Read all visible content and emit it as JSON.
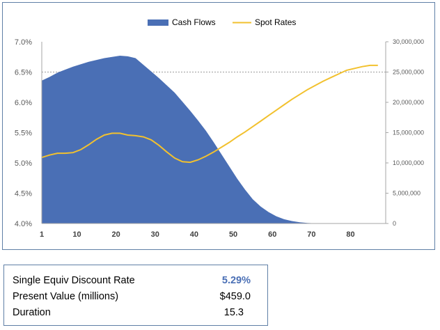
{
  "colors": {
    "cash_flows": "#4a6fb5",
    "spot_rates": "#f2c12e",
    "accent": "#4a6fb5"
  },
  "chart_data": {
    "type": "area",
    "legend": {
      "placement": "top-center",
      "entries": [
        "Cash Flows",
        "Spot Rates"
      ]
    },
    "x_ticks": [
      "1",
      "10",
      "20",
      "30",
      "40",
      "50",
      "60",
      "70",
      "80"
    ],
    "xlim": [
      1,
      89
    ],
    "left_axis": {
      "ylim": [
        0.04,
        0.07
      ],
      "ticks": [
        "4.0%",
        "4.5%",
        "5.0%",
        "5.5%",
        "6.0%",
        "6.5%",
        "7.0%"
      ]
    },
    "right_axis": {
      "ylim": [
        0,
        30000000
      ],
      "ticks": [
        "0",
        "5,000,000",
        "10,000,000",
        "15,000,000",
        "20,000,000",
        "25,000,000",
        "30,000,000"
      ]
    },
    "grid": "horizontal, right axis 25,000,000",
    "series": [
      {
        "name": "Cash Flows",
        "type": "area",
        "axis": "right",
        "x": [
          1,
          3,
          5,
          7,
          9,
          11,
          13,
          15,
          17,
          19,
          21,
          23,
          25,
          27,
          29,
          31,
          33,
          35,
          37,
          39,
          41,
          43,
          45,
          47,
          49,
          51,
          53,
          55,
          57,
          59,
          61,
          63,
          65,
          67,
          69,
          71,
          73
        ],
        "values": [
          23600000,
          24200000,
          24900000,
          25400000,
          25900000,
          26300000,
          26700000,
          27000000,
          27300000,
          27500000,
          27700000,
          27600000,
          27300000,
          26200000,
          25100000,
          24000000,
          22800000,
          21600000,
          20100000,
          18600000,
          17000000,
          15300000,
          13400000,
          11400000,
          9400000,
          7400000,
          5600000,
          4000000,
          2800000,
          1900000,
          1200000,
          700000,
          400000,
          200000,
          80000,
          20000,
          0
        ]
      },
      {
        "name": "Spot Rates",
        "type": "line",
        "axis": "left",
        "x": [
          1,
          3,
          5,
          7,
          9,
          11,
          13,
          15,
          17,
          19,
          21,
          23,
          25,
          27,
          29,
          31,
          33,
          35,
          37,
          39,
          41,
          43,
          45,
          47,
          49,
          51,
          53,
          55,
          57,
          59,
          61,
          63,
          65,
          67,
          69,
          71,
          73,
          75,
          77,
          79,
          81,
          83,
          85,
          87
        ],
        "values": [
          0.0509,
          0.0513,
          0.0516,
          0.0516,
          0.0517,
          0.0522,
          0.053,
          0.0539,
          0.0546,
          0.0549,
          0.0549,
          0.0546,
          0.0545,
          0.0543,
          0.0538,
          0.0529,
          0.0518,
          0.0508,
          0.0502,
          0.0501,
          0.0505,
          0.0511,
          0.0518,
          0.0526,
          0.0534,
          0.0543,
          0.0551,
          0.056,
          0.0569,
          0.0578,
          0.0587,
          0.0596,
          0.0605,
          0.0613,
          0.0621,
          0.0628,
          0.0635,
          0.0641,
          0.0647,
          0.0653,
          0.0656,
          0.0659,
          0.0661,
          0.0661
        ]
      }
    ]
  },
  "summary": {
    "rows": [
      {
        "label": "Single Equiv Discount Rate",
        "value": "5.29%"
      },
      {
        "label": "Present Value (millions)",
        "value": "$459.0"
      },
      {
        "label": "Duration",
        "value": "15.3"
      }
    ]
  }
}
